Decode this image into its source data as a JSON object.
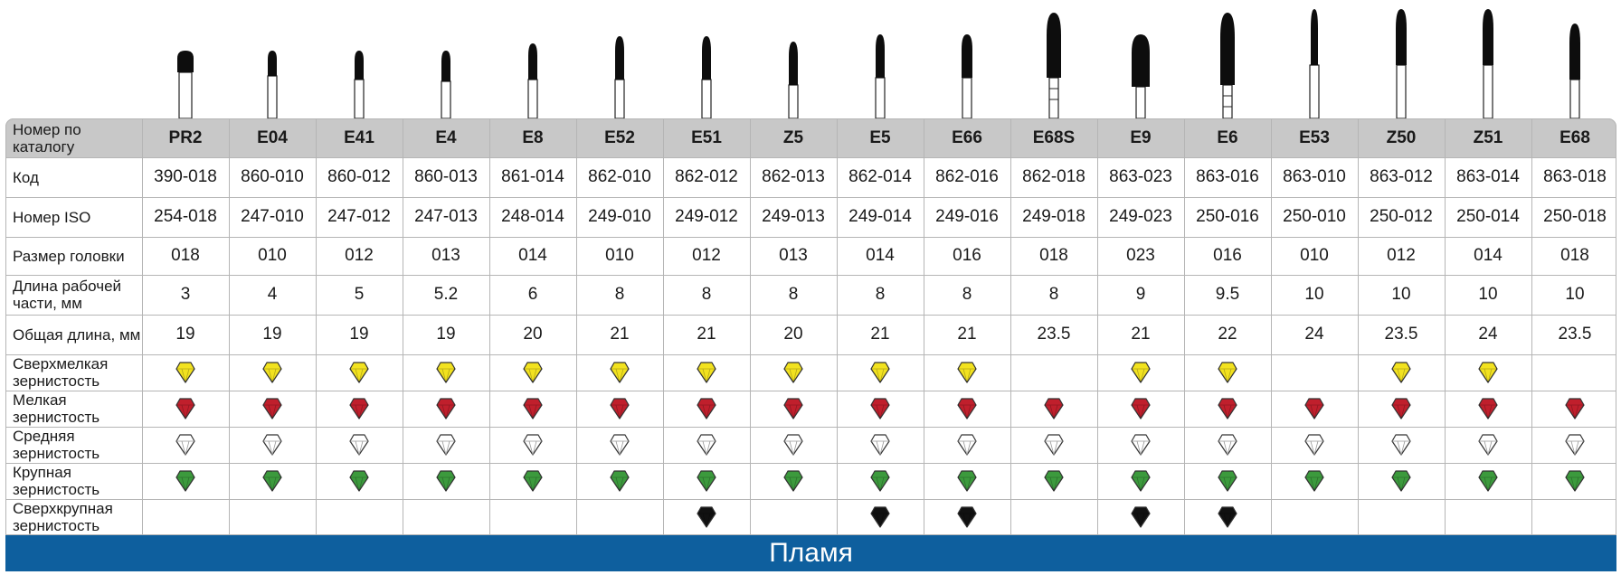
{
  "table": {
    "header_label": "Номер по каталогу",
    "columns": [
      "PR2",
      "E04",
      "E41",
      "E4",
      "E8",
      "E52",
      "E51",
      "Z5",
      "E5",
      "E66",
      "E68S",
      "E9",
      "E6",
      "E53",
      "Z50",
      "Z51",
      "E68"
    ],
    "rows": [
      {
        "label": "Код",
        "values": [
          "390-018",
          "860-010",
          "860-012",
          "860-013",
          "861-014",
          "862-010",
          "862-012",
          "862-013",
          "862-014",
          "862-016",
          "862-018",
          "863-023",
          "863-016",
          "863-010",
          "863-012",
          "863-014",
          "863-018"
        ]
      },
      {
        "label": "Номер ISO",
        "values": [
          "254-018",
          "247-010",
          "247-012",
          "247-013",
          "248-014",
          "249-010",
          "249-012",
          "249-013",
          "249-014",
          "249-016",
          "249-018",
          "249-023",
          "250-016",
          "250-010",
          "250-012",
          "250-014",
          "250-018"
        ]
      },
      {
        "label": "Размер головки",
        "values": [
          "018",
          "010",
          "012",
          "013",
          "014",
          "010",
          "012",
          "013",
          "014",
          "016",
          "018",
          "023",
          "016",
          "010",
          "012",
          "014",
          "018"
        ]
      },
      {
        "label": "Длина рабочей части, мм",
        "values": [
          "3",
          "4",
          "5",
          "5.2",
          "6",
          "8",
          "8",
          "8",
          "8",
          "8",
          "8",
          "9",
          "9.5",
          "10",
          "10",
          "10",
          "10"
        ]
      },
      {
        "label": "Общая длина, мм",
        "values": [
          "19",
          "19",
          "19",
          "19",
          "20",
          "21",
          "21",
          "20",
          "21",
          "21",
          "23.5",
          "21",
          "22",
          "24",
          "23.5",
          "24",
          "23.5"
        ]
      }
    ],
    "grit_rows": [
      {
        "label": "Сверхмелкая зернистость",
        "color": "#f2e21f",
        "available": [
          true,
          true,
          true,
          true,
          true,
          true,
          true,
          true,
          true,
          true,
          false,
          true,
          true,
          false,
          true,
          true,
          false
        ]
      },
      {
        "label": "Мелкая зернистость",
        "color": "#c01f2c",
        "available": [
          true,
          true,
          true,
          true,
          true,
          true,
          true,
          true,
          true,
          true,
          true,
          true,
          true,
          true,
          true,
          true,
          true
        ]
      },
      {
        "label": "Средняя зернистость",
        "color": "#ffffff",
        "available": [
          true,
          true,
          true,
          true,
          true,
          true,
          true,
          true,
          true,
          true,
          true,
          true,
          true,
          true,
          true,
          true,
          true
        ]
      },
      {
        "label": "Крупная зернистость",
        "color": "#3c9a3d",
        "available": [
          true,
          true,
          true,
          true,
          true,
          true,
          true,
          true,
          true,
          true,
          true,
          true,
          true,
          true,
          true,
          true,
          true
        ]
      },
      {
        "label": "Сверхкрупная зернистость",
        "color": "#111111",
        "available": [
          false,
          false,
          false,
          false,
          false,
          false,
          true,
          false,
          true,
          true,
          false,
          true,
          true,
          false,
          false,
          false,
          false
        ]
      }
    ]
  },
  "footer_title": "Пламя",
  "colors": {
    "header_bg": "#c8c8c8",
    "footer_bg": "#0e5f9e",
    "grid": "#b5b5b5"
  }
}
